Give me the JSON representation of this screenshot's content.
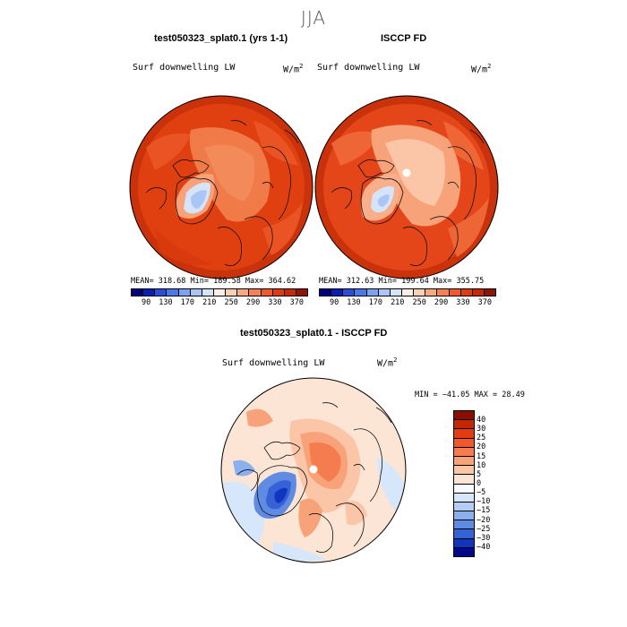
{
  "season": "JJA",
  "panels": [
    {
      "title": "test050323_splat0.1 (yrs 1-1)",
      "variable": "Surf downwelling LW",
      "units": "W/m",
      "units_exp": "2",
      "mean": "318.68",
      "min": "189.58",
      "max": "364.62",
      "stats_text": "MEAN= 318.68   Min= 189.58   Max= 364.62"
    },
    {
      "title": "ISCCP FD",
      "variable": "Surf downwelling LW",
      "units": "W/m",
      "units_exp": "2",
      "mean": "312.63",
      "min": "199.64",
      "max": "355.75",
      "stats_text": "MEAN= 312.63   Min= 199.64   Max= 355.75"
    }
  ],
  "colorbar_top": {
    "ticks": [
      "90",
      "130",
      "170",
      "210",
      "250",
      "290",
      "330",
      "370"
    ],
    "colors": [
      "#000080",
      "#0a1fb0",
      "#2a4ed8",
      "#4a78e8",
      "#7ca3f0",
      "#aac6f6",
      "#d5e4f9",
      "#fbeee6",
      "#fbd0b3",
      "#f9a97e",
      "#f58154",
      "#f0592e",
      "#e03a12",
      "#c42a08",
      "#8e1405"
    ]
  },
  "diff_panel": {
    "title": "test050323_splat0.1 - ISCCP FD",
    "variable": "Surf downwelling LW",
    "units": "W/m",
    "units_exp": "2",
    "min": "-41.05",
    "max": "28.49",
    "stats_text": "MIN = −41.05  MAX =   28.49",
    "ticks": [
      "40",
      "30",
      "25",
      "20",
      "15",
      "10",
      "5",
      "0",
      "−5",
      "−10",
      "−15",
      "−20",
      "−25",
      "−30",
      "−40"
    ],
    "colors": [
      "#8a0f03",
      "#c22806",
      "#e23c10",
      "#f2582a",
      "#f57c4e",
      "#f8a27a",
      "#fbc6a8",
      "#fde5d6",
      "#f7fbff",
      "#d6e6fb",
      "#b3cdf5",
      "#8cb0ee",
      "#5f8be3",
      "#3662d6",
      "#1235c0",
      "#000a8a"
    ]
  }
}
